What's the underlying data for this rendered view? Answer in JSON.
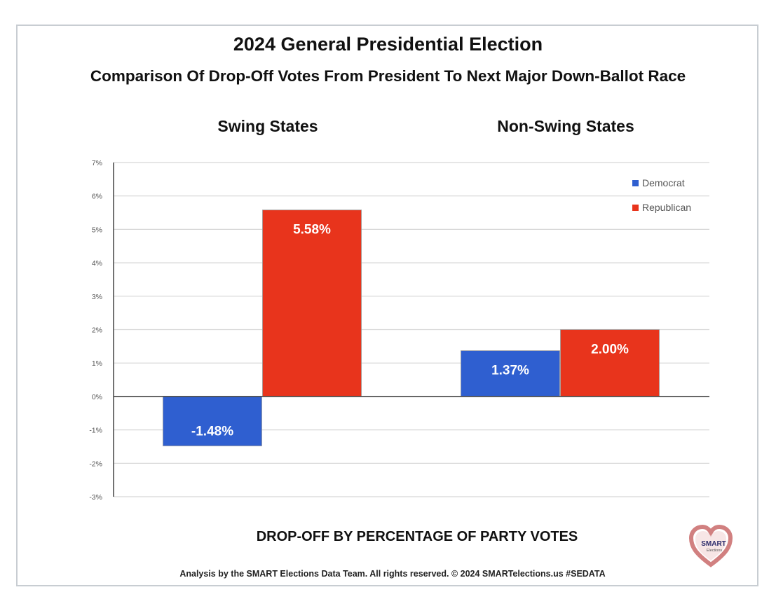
{
  "chart_data": {
    "type": "bar",
    "title": "2024 General Presidential Election",
    "subtitle": "Comparison Of Drop-Off Votes From President To Next Major Down-Ballot Race",
    "categories": [
      "Swing States",
      "Non-Swing States"
    ],
    "series": [
      {
        "name": "Democrat",
        "values": [
          -1.48,
          1.37
        ],
        "labels": [
          "-1.48%",
          "1.37%"
        ],
        "color": "#2f5fd0"
      },
      {
        "name": "Republican",
        "values": [
          5.58,
          2.0
        ],
        "labels": [
          "5.58%",
          "2.00%"
        ],
        "color": "#e8341c"
      }
    ],
    "xlabel": "DROP-OFF BY PERCENTAGE OF PARTY VOTES",
    "ylabel": "",
    "ylim": [
      -3,
      7
    ],
    "yticks": [
      "7%",
      "6%",
      "5%",
      "4%",
      "3%",
      "2%",
      "1%",
      "0%",
      "-1%",
      "-2%",
      "-3%"
    ],
    "grid": true,
    "legend": "top-right"
  },
  "footer": "Analysis by the SMART Elections Data Team. All rights reserved. © 2024 SMARTelections.us  #SEDATA",
  "logo": {
    "text": "SMART",
    "subtext": "Elections",
    "icon": "heart-icon"
  }
}
